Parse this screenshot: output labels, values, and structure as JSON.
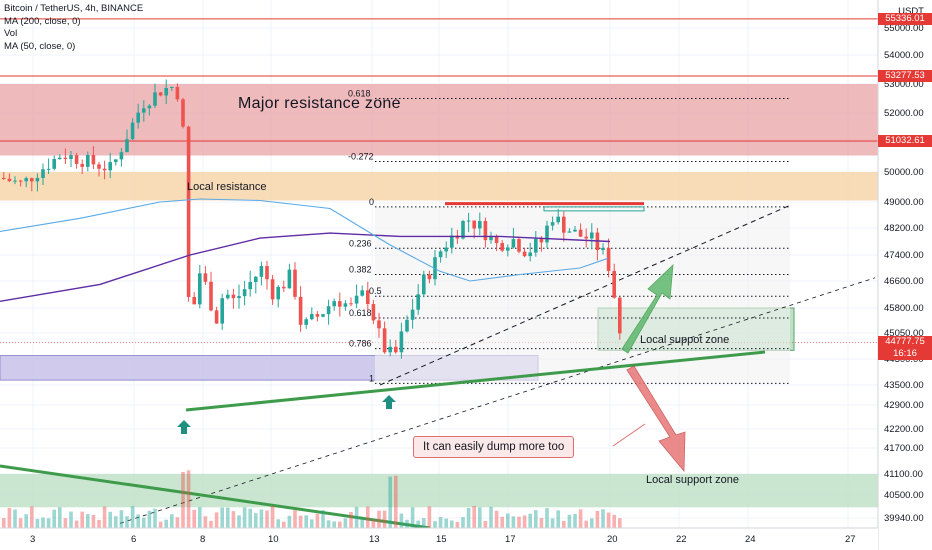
{
  "legend": {
    "symbol_line": "Bitcoin / TetherUS, 4h, BINANCE",
    "indicators": [
      "MA (200, close, 0)",
      "Vol",
      "MA (50, close, 0)"
    ]
  },
  "axis": {
    "currency": "USDT",
    "price_ticks": [
      55000,
      54000,
      53000,
      52000,
      51000,
      50000,
      49000,
      48200,
      47400,
      46600,
      45800,
      45050,
      44300,
      43500,
      42900,
      42200,
      41700,
      41100,
      40500,
      39940
    ],
    "price_tick_labels": [
      "55000.00",
      "54000.00",
      "53000.00",
      "52000.00",
      "51000.00",
      "50000.00",
      "49000.00",
      "48200.00",
      "47400.00",
      "46600.00",
      "45800.00",
      "45050.00",
      "44300.00",
      "43500.00",
      "42900.00",
      "42200.00",
      "41700.00",
      "41100.00",
      "40500.00",
      "39940.00"
    ],
    "date_ticks": [
      "3",
      "6",
      "8",
      "10",
      "13",
      "15",
      "17",
      "20",
      "22",
      "24",
      "27"
    ]
  },
  "price_badges": [
    {
      "label": "55336.01",
      "value": 55336.01,
      "color": "#e53935"
    },
    {
      "label": "53277.53",
      "value": 53277.53,
      "color": "#e53935"
    },
    {
      "label": "51032.61",
      "value": 51032.61,
      "color": "#e53935"
    },
    {
      "label": "44777.75",
      "value": 44777.75,
      "color": "#e53935"
    },
    {
      "label": "16:16",
      "value": 44600,
      "color": "#e53935"
    }
  ],
  "annotations": {
    "major_resistance": "Major resistance zone",
    "local_resistance": "Local resistance",
    "local_support_upper": "Local suppot zone",
    "local_support_lower": "Local support zone",
    "dump_note": "It can easily dump more too"
  },
  "fib_levels": [
    {
      "label": "0.618",
      "value": 52500
    },
    {
      "label": "-0.272",
      "value": 50350
    },
    {
      "label": "0",
      "value": 48850
    },
    {
      "label": "0.236",
      "value": 47600
    },
    {
      "label": "0.382",
      "value": 46800
    },
    {
      "label": "0.5",
      "value": 46150
    },
    {
      "label": "0.618",
      "value": 45500
    },
    {
      "label": "0.786",
      "value": 44600
    },
    {
      "label": "1",
      "value": 43550
    }
  ],
  "colors": {
    "up": "#26a69a",
    "down": "#ef5350",
    "resistance_zone": "#e9a3a6",
    "local_resistance": "#f6d3a6",
    "support_zone": "#b9ddc0",
    "purple_zone": "#c5bfe9",
    "ma200": "#5e2ca5",
    "ma50": "#5aa9e6",
    "trendline": "#3e9b4b"
  }
}
